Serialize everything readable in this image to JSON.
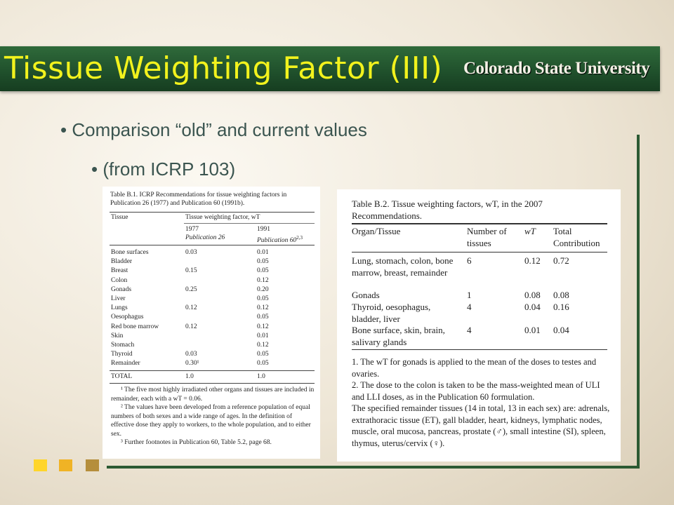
{
  "slide": {
    "title": "Tissue Weighting Factor (III)",
    "logo": "Colorado State University",
    "bullet1": "• Comparison “old” and current values",
    "bullet2": "• (from ICRP 103)",
    "colors": {
      "banner": "#1f4f2b",
      "title": "#f2f21d",
      "frame": "#2c5a33"
    }
  },
  "table1": {
    "caption": "Table B.1. ICRP Recommendations for tissue weighting factors in Publication 26 (1977) and Publication 60 (1991b).",
    "col_tissue": "Tissue",
    "col_factor": "Tissue weighting factor, wT",
    "col_1977": "1977",
    "col_1977_sub": "Publication 26",
    "col_1991": "1991",
    "col_1991_sub": "Publication 60",
    "col_1991_sup": "2,3",
    "rows": [
      {
        "tissue": "Bone surfaces",
        "v1977": "0.03",
        "v1991": "0.01"
      },
      {
        "tissue": "Bladder",
        "v1977": "",
        "v1991": "0.05"
      },
      {
        "tissue": "Breast",
        "v1977": "0.15",
        "v1991": "0.05"
      },
      {
        "tissue": "Colon",
        "v1977": "",
        "v1991": "0.12"
      },
      {
        "tissue": "Gonads",
        "v1977": "0.25",
        "v1991": "0.20"
      },
      {
        "tissue": "Liver",
        "v1977": "",
        "v1991": "0.05"
      },
      {
        "tissue": "Lungs",
        "v1977": "0.12",
        "v1991": "0.12"
      },
      {
        "tissue": "Oesophagus",
        "v1977": "",
        "v1991": "0.05"
      },
      {
        "tissue": "Red bone marrow",
        "v1977": "0.12",
        "v1991": "0.12"
      },
      {
        "tissue": "Skin",
        "v1977": "",
        "v1991": "0.01"
      },
      {
        "tissue": "Stomach",
        "v1977": "",
        "v1991": "0.12"
      },
      {
        "tissue": "Thyroid",
        "v1977": "0.03",
        "v1991": "0.05"
      },
      {
        "tissue": "Remainder",
        "v1977": "0.30¹",
        "v1991": "0.05"
      }
    ],
    "total_label": "TOTAL",
    "total_1977": "1.0",
    "total_1991": "1.0",
    "footnotes": [
      "¹ The five most highly irradiated other organs and tissues are included in remainder, each with a wT = 0.06.",
      "² The values have been developed from a reference population of equal numbers of both sexes and a wide range of ages. In the definition of effective dose they apply to workers, to the whole population, and to either sex.",
      "³ Further footnotes in Publication 60, Table 5.2, page 68."
    ]
  },
  "table2": {
    "caption": "Table B.2. Tissue weighting factors, wT, in the 2007 Recommendations.",
    "col_organ": "Organ/Tissue",
    "col_number": "Number of tissues",
    "col_wt": "wT",
    "col_total": "Total Contribution",
    "rows": [
      {
        "organ": "Lung, stomach, colon, bone marrow, breast, remainder",
        "number": "6",
        "wt": "0.12",
        "total": "0.72"
      },
      {
        "organ": "Gonads",
        "number": "1",
        "wt": "0.08",
        "total": "0.08"
      },
      {
        "organ": "Thyroid, oesophagus, bladder, liver",
        "number": "4",
        "wt": "0.04",
        "total": "0.16"
      },
      {
        "organ": "Bone surface, skin, brain, salivary glands",
        "number": "4",
        "wt": "0.01",
        "total": "0.04"
      }
    ],
    "footnotes": [
      "1. The wT for gonads is applied to the mean of the doses to testes and ovaries.",
      "2. The dose to the colon is taken to be the mass-weighted mean of ULI and LLI doses, as in the Publication 60 formulation.",
      "The specified remainder tissues (14 in total, 13 in each sex) are: adrenals, extrathoracic tissue (ET), gall bladder, heart, kidneys, lymphatic nodes, muscle, oral mucosa, pancreas, prostate (♂), small intestine (SI), spleen, thymus, uterus/cervix (♀)."
    ]
  }
}
